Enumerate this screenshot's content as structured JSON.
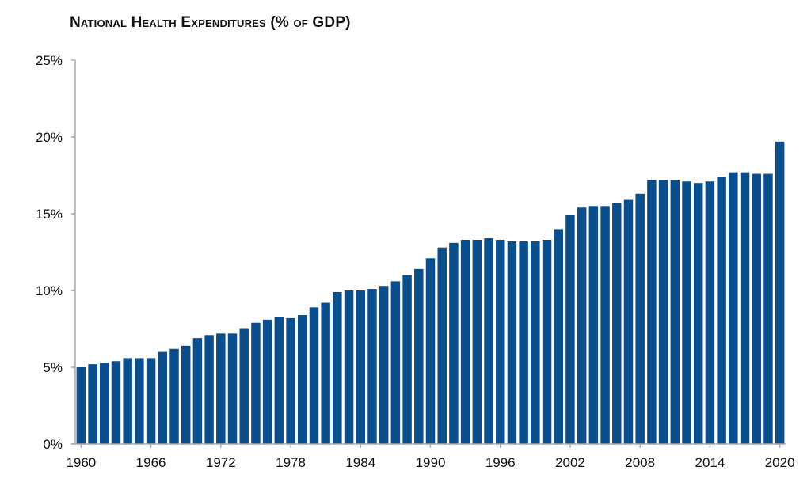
{
  "chart_data": {
    "type": "bar",
    "title": "National Health Expenditures (% of GDP)",
    "xlabel": "",
    "ylabel": "",
    "ylim": [
      0,
      25
    ],
    "grid": false,
    "legend": "none",
    "bar_color": "#0a4f8c",
    "y_ticks": [
      0,
      5,
      10,
      15,
      20,
      25
    ],
    "y_tick_labels": [
      "0%",
      "5%",
      "10%",
      "15%",
      "20%",
      "25%"
    ],
    "x_tick_labels": [
      "1960",
      "1966",
      "1972",
      "1978",
      "1984",
      "1990",
      "1996",
      "2002",
      "2008",
      "2014",
      "2020"
    ],
    "categories": [
      1960,
      1961,
      1962,
      1963,
      1964,
      1965,
      1966,
      1967,
      1968,
      1969,
      1970,
      1971,
      1972,
      1973,
      1974,
      1975,
      1976,
      1977,
      1978,
      1979,
      1980,
      1981,
      1982,
      1983,
      1984,
      1985,
      1986,
      1987,
      1988,
      1989,
      1990,
      1991,
      1992,
      1993,
      1994,
      1995,
      1996,
      1997,
      1998,
      1999,
      2000,
      2001,
      2002,
      2003,
      2004,
      2005,
      2006,
      2007,
      2008,
      2009,
      2010,
      2011,
      2012,
      2013,
      2014,
      2015,
      2016,
      2017,
      2018,
      2019,
      2020
    ],
    "values": [
      5.0,
      5.2,
      5.3,
      5.4,
      5.6,
      5.6,
      5.6,
      6.0,
      6.2,
      6.4,
      6.9,
      7.1,
      7.2,
      7.2,
      7.5,
      7.9,
      8.1,
      8.3,
      8.2,
      8.4,
      8.9,
      9.2,
      9.9,
      10.0,
      10.0,
      10.1,
      10.3,
      10.6,
      11.0,
      11.4,
      12.1,
      12.8,
      13.1,
      13.3,
      13.3,
      13.4,
      13.3,
      13.2,
      13.2,
      13.2,
      13.3,
      14.0,
      14.9,
      15.4,
      15.5,
      15.5,
      15.7,
      15.9,
      16.3,
      17.2,
      17.2,
      17.2,
      17.1,
      17.0,
      17.1,
      17.4,
      17.7,
      17.7,
      17.6,
      17.6,
      19.7
    ]
  }
}
